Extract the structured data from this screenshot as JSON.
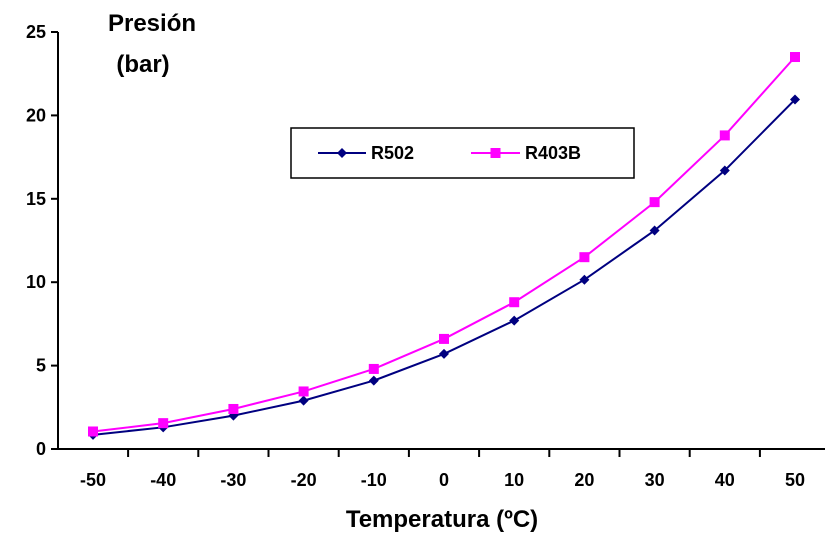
{
  "chart_data": {
    "type": "line",
    "ylabel_line1": "Presión",
    "ylabel_line2": "(bar)",
    "xlabel": "Temperatura (ºC)",
    "x": [
      -50,
      -40,
      -30,
      -20,
      -10,
      0,
      10,
      20,
      30,
      40,
      50
    ],
    "xlim": [
      -50,
      50
    ],
    "ylim": [
      0,
      25
    ],
    "yticks": [
      0,
      5,
      10,
      15,
      20,
      25
    ],
    "xticks": [
      -50,
      -40,
      -30,
      -20,
      -10,
      0,
      10,
      20,
      30,
      40,
      50
    ],
    "grid": false,
    "legend_position": "top-center",
    "series": [
      {
        "name": "R502",
        "color": "#000080",
        "marker": "diamond",
        "values": [
          0.85,
          1.3,
          2.0,
          2.9,
          4.1,
          5.7,
          7.7,
          10.15,
          13.1,
          16.7,
          20.95
        ]
      },
      {
        "name": "R403B",
        "color": "#ff00ff",
        "marker": "square",
        "values": [
          1.05,
          1.55,
          2.4,
          3.45,
          4.8,
          6.6,
          8.8,
          11.5,
          14.8,
          18.8,
          23.5
        ]
      }
    ]
  }
}
